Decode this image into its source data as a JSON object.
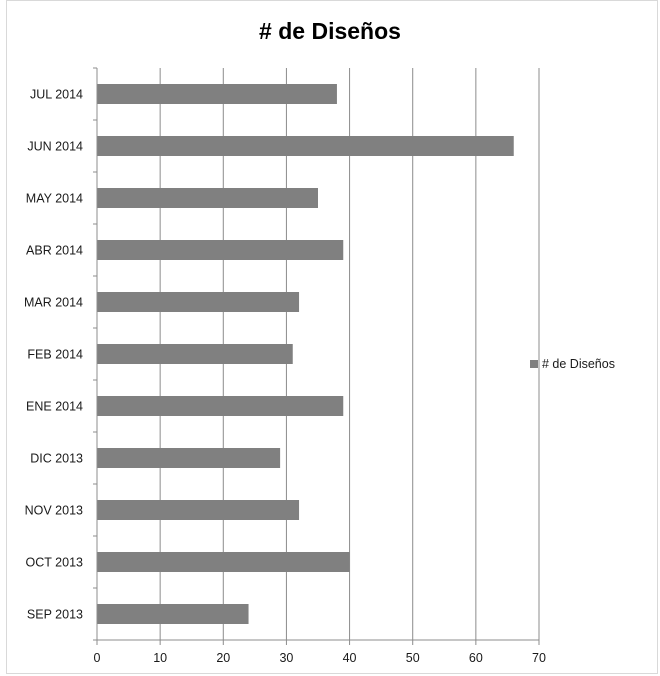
{
  "chart_data": {
    "type": "bar",
    "orientation": "horizontal",
    "title": "# de Diseños",
    "categories": [
      "SEP 2013",
      "OCT 2013",
      "NOV 2013",
      "DIC 2013",
      "ENE 2014",
      "FEB 2014",
      "MAR 2014",
      "ABR 2014",
      "MAY 2014",
      "JUN 2014",
      "JUL 2014"
    ],
    "series": [
      {
        "name": "# de Diseños",
        "values": [
          24,
          40,
          32,
          29,
          39,
          31,
          32,
          39,
          35,
          66,
          38
        ],
        "color": "#808080"
      }
    ],
    "xlim": [
      0,
      70
    ],
    "xticks": [
      0,
      10,
      20,
      30,
      40,
      50,
      60,
      70
    ],
    "xlabel": "",
    "ylabel": "",
    "grid": "vertical",
    "legend_position": "right"
  }
}
